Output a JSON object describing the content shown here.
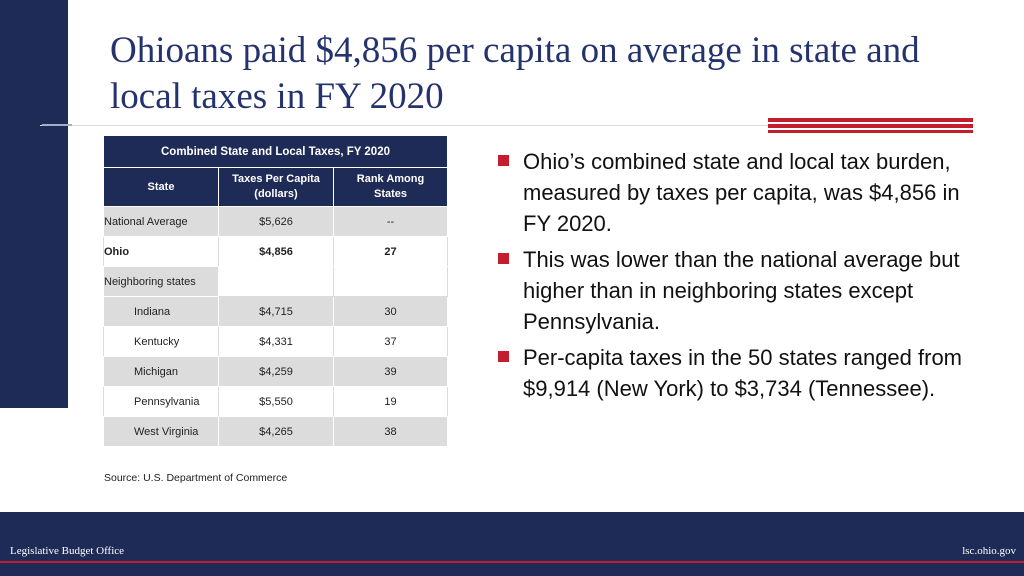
{
  "title": "Ohioans paid $4,856 per capita on average in state and local taxes in FY 2020",
  "table": {
    "caption": "Combined State and Local Taxes, FY 2020",
    "headers": [
      "State",
      "Taxes Per Capita (dollars)",
      "Rank Among States"
    ],
    "rows": [
      {
        "state": "National Average",
        "tax": "$5,626",
        "rank": "--"
      },
      {
        "state": "Ohio",
        "tax": "$4,856",
        "rank": "27"
      },
      {
        "state": "Neighboring states",
        "tax": "",
        "rank": ""
      },
      {
        "state": "Indiana",
        "tax": "$4,715",
        "rank": "30"
      },
      {
        "state": "Kentucky",
        "tax": "$4,331",
        "rank": "37"
      },
      {
        "state": "Michigan",
        "tax": "$4,259",
        "rank": "39"
      },
      {
        "state": "Pennsylvania",
        "tax": "$5,550",
        "rank": "19"
      },
      {
        "state": "West Virginia",
        "tax": "$4,265",
        "rank": "38"
      }
    ]
  },
  "source": "Source: U.S. Department of Commerce",
  "bullets": [
    "Ohio’s combined state and local tax burden, measured by taxes per capita, was $4,856 in FY 2020.",
    "This was lower than the national average but higher than in neighboring states except Pennsylvania.",
    "Per-capita taxes in the 50 states ranged from $9,914 (New York) to $3,734 (Tennessee)."
  ],
  "footer": {
    "left": "Legislative Budget Office",
    "right": "lsc.ohio.gov"
  },
  "colors": {
    "navy": "#1f2b57",
    "accent_red": "#c41e2e",
    "title_blue": "#24336e"
  }
}
